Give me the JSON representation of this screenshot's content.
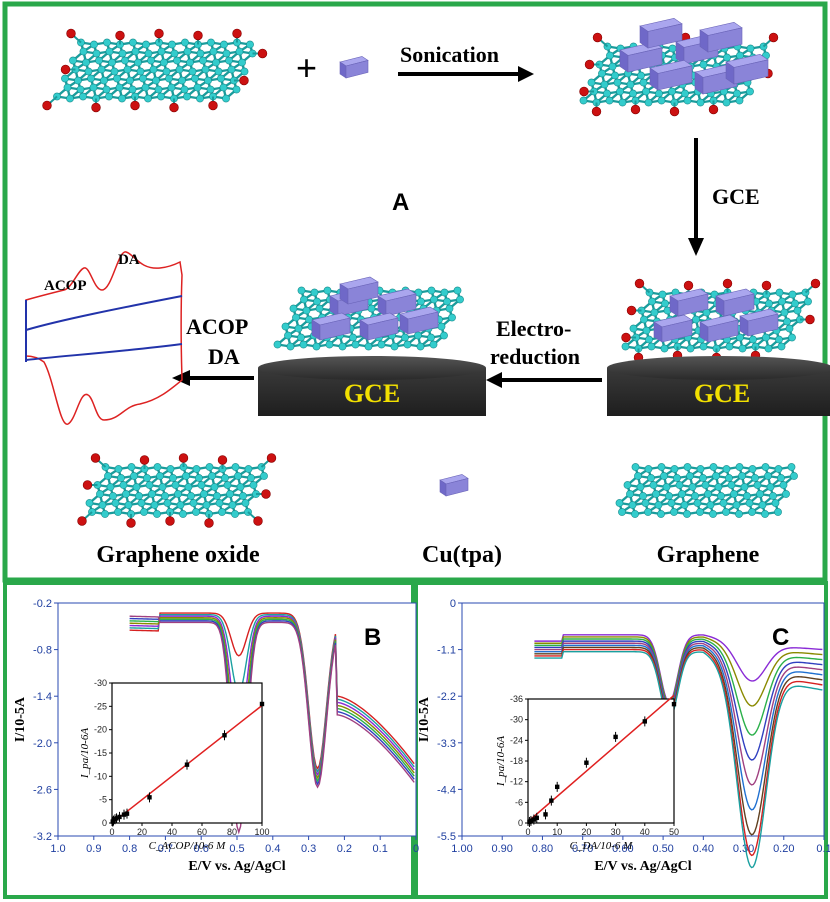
{
  "panel_a": {
    "letter": "A",
    "sonication": "Sonication",
    "plus": "+",
    "gce_arrow": "GCE",
    "electro_line1": "Electro-",
    "electro_line2": "reduction",
    "electrode_label": "GCE",
    "analyte_1": "ACOP",
    "analyte_2": "DA",
    "cv_peak_1": "ACOP",
    "cv_peak_2": "DA",
    "legend_graphene_oxide": "Graphene oxide",
    "legend_cutpa": "Cu(tpa)",
    "legend_graphene": "Graphene"
  },
  "colors": {
    "frame": "#2aa84a",
    "atom": "#33cccc",
    "oxygen": "#cc1111",
    "cube": "#8a84d8",
    "electrode_dark": "#333333",
    "electrode_text": "#f2e000"
  },
  "chart_data": [
    {
      "type": "line",
      "panel": "B",
      "xlabel": "E/V vs. Ag/AgCl",
      "ylabel": "I/10-5A",
      "x_ticks": [
        "1.0",
        "0.9",
        "0.8",
        "0.7",
        "0.6",
        "0.5",
        "0.4",
        "0.3",
        "0.2",
        "0.1",
        "0"
      ],
      "y_ticks": [
        "-0.2",
        "-0.8",
        "-1.4",
        "-2.0",
        "-2.6",
        "-3.2"
      ],
      "xlim": [
        1.0,
        0.0
      ],
      "ylim": [
        -3.2,
        -0.2
      ],
      "inset": {
        "type": "scatter",
        "xlabel": "C_ACOP/10-6 M",
        "ylabel": "I_pa/10-6A",
        "x_ticks": [
          "0",
          "20",
          "40",
          "60",
          "80",
          "100"
        ],
        "y_ticks": [
          "0",
          "-5",
          "-10",
          "-15",
          "-20",
          "-25",
          "-30"
        ],
        "xlim": [
          0,
          100
        ],
        "ylim": [
          0,
          -30
        ],
        "x": [
          0.5,
          1,
          2,
          3,
          5,
          8,
          10,
          25,
          50,
          75,
          100
        ],
        "y": [
          -0.3,
          -0.5,
          -0.8,
          -1.0,
          -1.3,
          -1.8,
          -2.0,
          -5.5,
          -12.5,
          -18.8,
          -25.5
        ]
      }
    },
    {
      "type": "line",
      "panel": "C",
      "xlabel": "E/V vs. Ag/AgCl",
      "ylabel": "I/10-5A",
      "x_ticks": [
        "1.00",
        "0.90",
        "0.80",
        "0.70",
        "0.60",
        "0.50",
        "0.40",
        "0.30",
        "0.20",
        "0.1"
      ],
      "y_ticks": [
        "0",
        "-1.1",
        "-2.2",
        "-3.3",
        "-4.4",
        "-5.5"
      ],
      "xlim": [
        1.0,
        0.1
      ],
      "ylim": [
        -5.5,
        0
      ],
      "inset": {
        "type": "scatter",
        "xlabel": "C_DA/10-6 M",
        "ylabel": "I_pa/10-6A",
        "x_ticks": [
          "0",
          "10",
          "20",
          "30",
          "40",
          "50"
        ],
        "y_ticks": [
          "0",
          "-6",
          "-12",
          "-18",
          "-24",
          "-30",
          "-36"
        ],
        "xlim": [
          0,
          50
        ],
        "ylim": [
          0,
          -36
        ],
        "x": [
          0.5,
          1,
          2,
          3,
          6,
          8,
          10,
          20,
          30,
          40,
          50
        ],
        "y": [
          -0.3,
          -0.6,
          -1.0,
          -1.5,
          -2.5,
          -6.5,
          -10.5,
          -17.5,
          -25.0,
          -29.5,
          -34.5
        ]
      }
    }
  ]
}
